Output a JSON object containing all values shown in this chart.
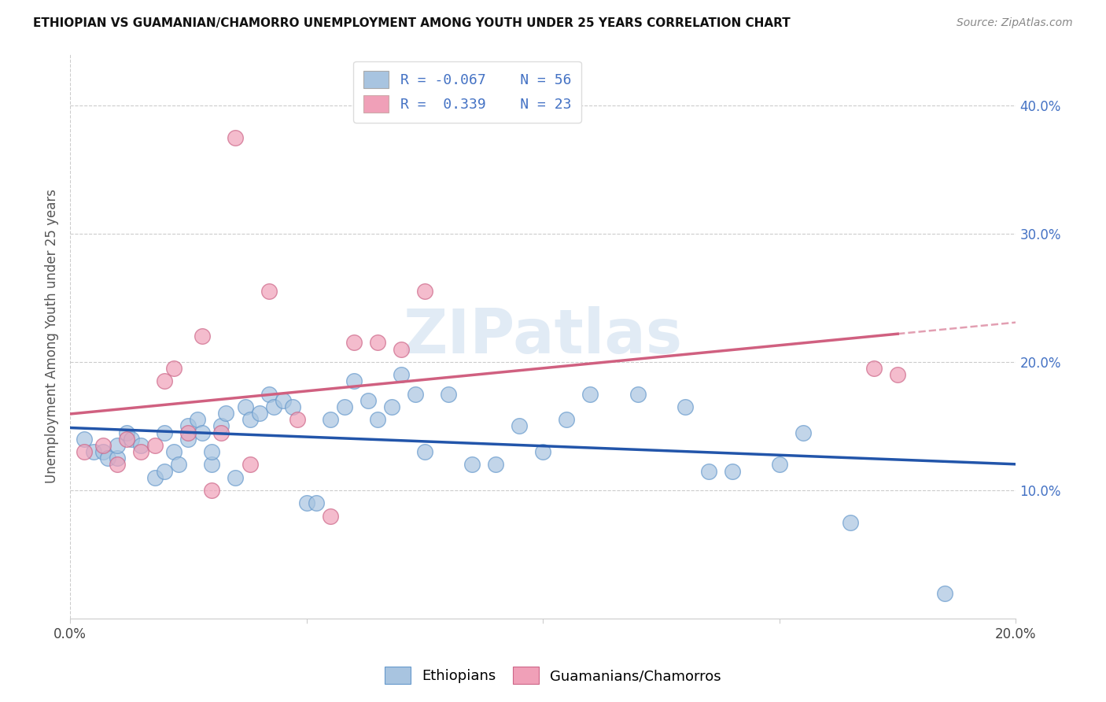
{
  "title": "ETHIOPIAN VS GUAMANIAN/CHAMORRO UNEMPLOYMENT AMONG YOUTH UNDER 25 YEARS CORRELATION CHART",
  "source": "Source: ZipAtlas.com",
  "ylabel": "Unemployment Among Youth under 25 years",
  "xlim": [
    0.0,
    0.2
  ],
  "ylim": [
    0.0,
    0.44
  ],
  "yticks_right": [
    0.1,
    0.2,
    0.3,
    0.4
  ],
  "ytick_right_labels": [
    "10.0%",
    "20.0%",
    "30.0%",
    "40.0%"
  ],
  "blue_color": "#a8c4e0",
  "pink_color": "#f0a0b8",
  "blue_line_color": "#2255aa",
  "pink_line_color": "#d06080",
  "watermark": "ZIPatlas",
  "blue_x": [
    0.003,
    0.005,
    0.007,
    0.008,
    0.01,
    0.01,
    0.012,
    0.013,
    0.015,
    0.018,
    0.02,
    0.02,
    0.022,
    0.023,
    0.025,
    0.025,
    0.027,
    0.028,
    0.03,
    0.03,
    0.032,
    0.033,
    0.035,
    0.037,
    0.038,
    0.04,
    0.042,
    0.043,
    0.045,
    0.047,
    0.05,
    0.052,
    0.055,
    0.058,
    0.06,
    0.063,
    0.065,
    0.068,
    0.07,
    0.073,
    0.075,
    0.08,
    0.085,
    0.09,
    0.095,
    0.1,
    0.105,
    0.11,
    0.12,
    0.13,
    0.135,
    0.14,
    0.15,
    0.155,
    0.165,
    0.185
  ],
  "blue_y": [
    0.14,
    0.13,
    0.13,
    0.125,
    0.125,
    0.135,
    0.145,
    0.14,
    0.135,
    0.11,
    0.115,
    0.145,
    0.13,
    0.12,
    0.14,
    0.15,
    0.155,
    0.145,
    0.12,
    0.13,
    0.15,
    0.16,
    0.11,
    0.165,
    0.155,
    0.16,
    0.175,
    0.165,
    0.17,
    0.165,
    0.09,
    0.09,
    0.155,
    0.165,
    0.185,
    0.17,
    0.155,
    0.165,
    0.19,
    0.175,
    0.13,
    0.175,
    0.12,
    0.12,
    0.15,
    0.13,
    0.155,
    0.175,
    0.175,
    0.165,
    0.115,
    0.115,
    0.12,
    0.145,
    0.075,
    0.02
  ],
  "pink_x": [
    0.003,
    0.007,
    0.01,
    0.012,
    0.015,
    0.018,
    0.02,
    0.022,
    0.025,
    0.028,
    0.03,
    0.032,
    0.035,
    0.038,
    0.042,
    0.048,
    0.055,
    0.06,
    0.065,
    0.07,
    0.075,
    0.17,
    0.175
  ],
  "pink_y": [
    0.13,
    0.135,
    0.12,
    0.14,
    0.13,
    0.135,
    0.185,
    0.195,
    0.145,
    0.22,
    0.1,
    0.145,
    0.375,
    0.12,
    0.255,
    0.155,
    0.08,
    0.215,
    0.215,
    0.21,
    0.255,
    0.195,
    0.19
  ]
}
